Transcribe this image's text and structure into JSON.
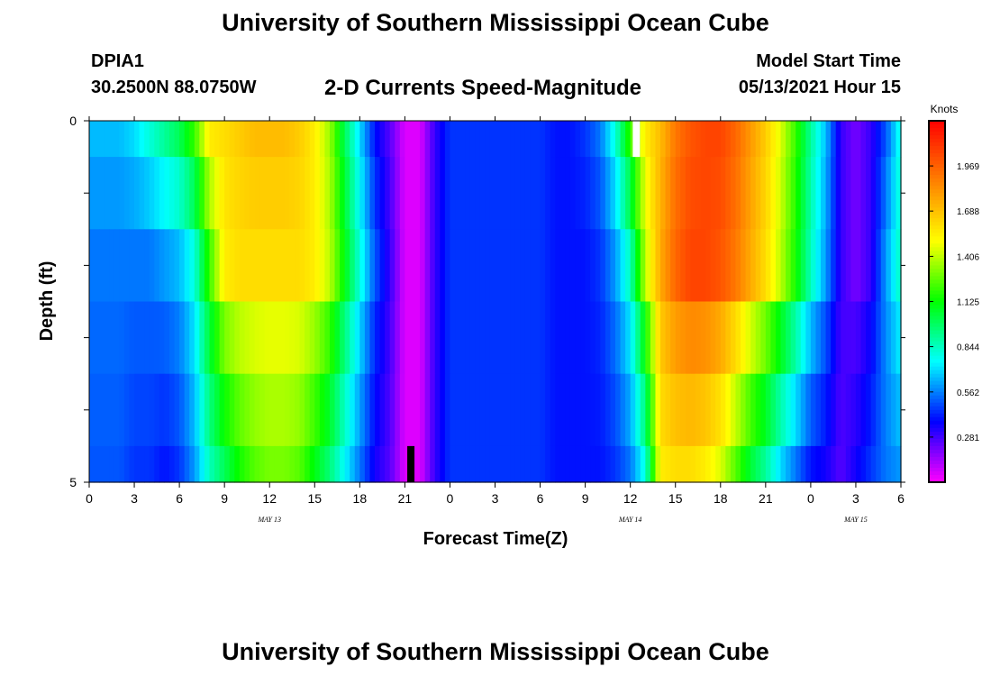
{
  "header": {
    "title": "University of Southern Mississippi Ocean Cube",
    "station_id": "DPIA1",
    "station_coords": "30.2500N  88.0750W",
    "subtitle": "2-D Currents Speed-Magnitude",
    "model_start_label": "Model Start Time",
    "model_start_value": "05/13/2021 Hour 15"
  },
  "footer": {
    "title": "University of Southern Mississippi Ocean Cube"
  },
  "colors": {
    "colormap": [
      "#ff00ff",
      "#8000ff",
      "#0000ff",
      "#0080ff",
      "#00ffff",
      "#00ff80",
      "#00ff00",
      "#80ff00",
      "#ffff00",
      "#ffc000",
      "#ff8000",
      "#ff4000",
      "#ff0000"
    ],
    "now_marker": "#ffffff",
    "start_marker": "#000000"
  },
  "chart_data": {
    "type": "heatmap",
    "xlabel": "Forecast Time(Z)",
    "ylabel": "Depth (ft)",
    "colorbar_label": "Knots",
    "colorbar_ticks": [
      "0.281",
      "0.562",
      "0.844",
      "1.125",
      "1.406",
      "1.688",
      "1.969"
    ],
    "colorbar_range": [
      0,
      2.25
    ],
    "y_tick_labels": [
      "0",
      "5"
    ],
    "ylim": [
      0,
      5
    ],
    "x_tick_labels": [
      "0",
      "3",
      "6",
      "9",
      "12",
      "15",
      "18",
      "21",
      "0",
      "3",
      "6",
      "9",
      "12",
      "15",
      "18",
      "21",
      "0",
      "3",
      "6"
    ],
    "xlim_hours": [
      0,
      54
    ],
    "date_labels": [
      {
        "label": "MAY 13",
        "hour": 12
      },
      {
        "label": "MAY 14",
        "hour": 36
      },
      {
        "label": "MAY 15",
        "hour": 51
      }
    ],
    "depth_bins_ft": [
      [
        0,
        0.5
      ],
      [
        0.5,
        1.5
      ],
      [
        1.5,
        2.5
      ],
      [
        2.5,
        3.5
      ],
      [
        3.5,
        4.5
      ],
      [
        4.5,
        5
      ]
    ],
    "speed_knots_by_time": {
      "hours": [
        0,
        1,
        2,
        3,
        4,
        5,
        6,
        7,
        8,
        9,
        10,
        11,
        12,
        13,
        14,
        15,
        16,
        17,
        18,
        19,
        20,
        21,
        22,
        23,
        24,
        25,
        26,
        27,
        28,
        29,
        30,
        31,
        32,
        33,
        34,
        35,
        36,
        37,
        38,
        39,
        40,
        41,
        42,
        43,
        44,
        45,
        46,
        47,
        48,
        49,
        50,
        51,
        52,
        53,
        54
      ],
      "surface": [
        0.65,
        0.65,
        0.65,
        0.7,
        0.8,
        0.9,
        1.0,
        1.2,
        1.55,
        1.6,
        1.65,
        1.7,
        1.7,
        1.7,
        1.65,
        1.55,
        1.35,
        1.0,
        0.7,
        0.4,
        0.25,
        0.05,
        0.05,
        0.3,
        0.45,
        0.45,
        0.45,
        0.45,
        0.45,
        0.45,
        0.45,
        0.4,
        0.4,
        0.45,
        0.55,
        0.8,
        1.2,
        1.55,
        1.7,
        1.9,
        2.0,
        2.05,
        2.05,
        1.95,
        1.8,
        1.65,
        1.45,
        1.2,
        0.9,
        0.65,
        0.3,
        0.2,
        0.3,
        0.5,
        0.8
      ],
      "mid": [
        0.55,
        0.55,
        0.55,
        0.55,
        0.55,
        0.6,
        0.65,
        0.8,
        1.2,
        1.55,
        1.6,
        1.6,
        1.6,
        1.6,
        1.6,
        1.55,
        1.4,
        1.1,
        0.8,
        0.5,
        0.3,
        0.05,
        0.05,
        0.3,
        0.45,
        0.45,
        0.45,
        0.45,
        0.45,
        0.45,
        0.45,
        0.4,
        0.4,
        0.4,
        0.45,
        0.6,
        0.85,
        1.4,
        1.75,
        1.95,
        2.05,
        2.05,
        2.0,
        1.9,
        1.75,
        1.6,
        1.4,
        1.15,
        0.85,
        0.6,
        0.3,
        0.2,
        0.3,
        0.6,
        0.85
      ],
      "bottom": [
        0.5,
        0.5,
        0.5,
        0.45,
        0.45,
        0.4,
        0.45,
        0.6,
        0.85,
        1.0,
        1.15,
        1.25,
        1.3,
        1.3,
        1.25,
        1.1,
        0.95,
        0.75,
        0.55,
        0.35,
        0.25,
        0.05,
        0.05,
        0.3,
        0.45,
        0.45,
        0.45,
        0.45,
        0.45,
        0.45,
        0.45,
        0.4,
        0.4,
        0.4,
        0.4,
        0.45,
        0.55,
        0.8,
        1.55,
        1.6,
        1.6,
        1.55,
        1.45,
        1.25,
        1.05,
        0.9,
        0.7,
        0.55,
        0.4,
        0.35,
        0.25,
        0.35,
        0.45,
        0.55,
        0.6
      ]
    },
    "markers": [
      {
        "name": "current-time",
        "hour": 36.4,
        "depth_range": [
          0,
          0.5
        ]
      },
      {
        "name": "model-start",
        "hour": 21.4,
        "depth_range": [
          4.5,
          5
        ]
      }
    ]
  }
}
